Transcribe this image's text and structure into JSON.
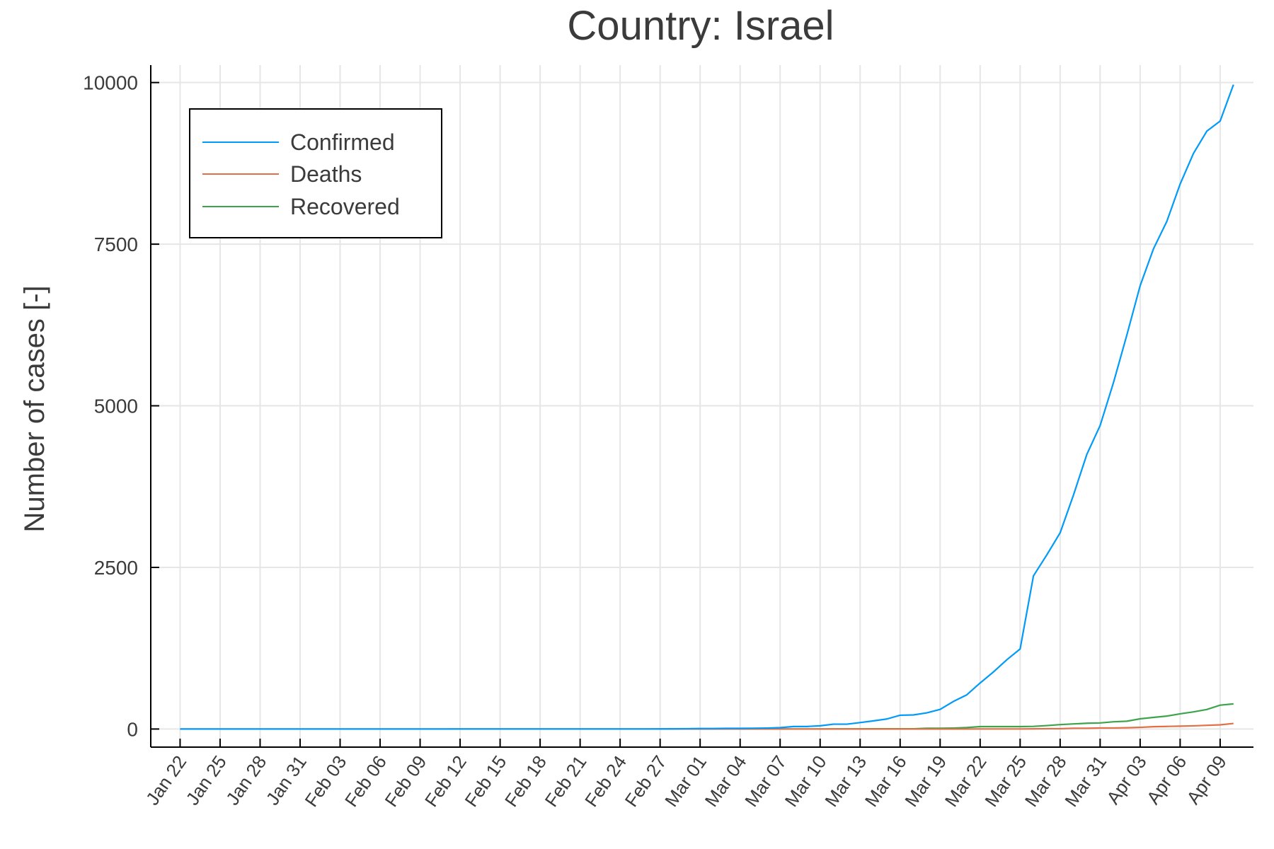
{
  "chart_data": {
    "type": "line",
    "title": "Country: Israel",
    "xlabel": "",
    "ylabel": "Number of cases [-]",
    "ylim": [
      -280,
      10270
    ],
    "yticks": [
      0,
      2500,
      5000,
      7500,
      10000
    ],
    "ytick_labels": [
      "0",
      "2500",
      "5000",
      "7500",
      "10000"
    ],
    "xticks": [
      0,
      3,
      6,
      9,
      12,
      15,
      18,
      21,
      24,
      27,
      30,
      33,
      36,
      39,
      42,
      45,
      48,
      51,
      54,
      57,
      60,
      63,
      66,
      69,
      72,
      75,
      78
    ],
    "xtick_labels": [
      "Jan 22",
      "Jan 25",
      "Jan 28",
      "Jan 31",
      "Feb 03",
      "Feb 06",
      "Feb 09",
      "Feb 12",
      "Feb 15",
      "Feb 18",
      "Feb 21",
      "Feb 24",
      "Feb 27",
      "Mar 01",
      "Mar 04",
      "Mar 07",
      "Mar 10",
      "Mar 13",
      "Mar 16",
      "Mar 19",
      "Mar 22",
      "Mar 25",
      "Mar 28",
      "Mar 31",
      "Apr 03",
      "Apr 06",
      "Apr 09"
    ],
    "xlim": [
      -2.2,
      80.5
    ],
    "grid": true,
    "legend_position": "top-left",
    "series": [
      {
        "name": "Confirmed",
        "color": "#009af9",
        "values": [
          0,
          0,
          0,
          0,
          0,
          0,
          0,
          0,
          0,
          0,
          0,
          0,
          0,
          0,
          0,
          0,
          0,
          0,
          0,
          0,
          0,
          1,
          1,
          1,
          1,
          1,
          1,
          1,
          1,
          1,
          1,
          1,
          1,
          1,
          1,
          1,
          2,
          3,
          5,
          7,
          7,
          10,
          10,
          12,
          15,
          21,
          39,
          39,
          50,
          75,
          75,
          100,
          126,
          155,
          213,
          218,
          250,
          304,
          427,
          529,
          712,
          883,
          1071,
          1238,
          2369,
          2693,
          3035,
          3619,
          4247,
          4695,
          5358,
          6092,
          6857,
          7428,
          7851,
          8430,
          8904,
          9248,
          9404,
          9968
        ]
      },
      {
        "name": "Deaths",
        "color": "#e26f46",
        "values": [
          0,
          0,
          0,
          0,
          0,
          0,
          0,
          0,
          0,
          0,
          0,
          0,
          0,
          0,
          0,
          0,
          0,
          0,
          0,
          0,
          0,
          0,
          0,
          0,
          0,
          0,
          0,
          0,
          0,
          0,
          0,
          0,
          0,
          0,
          0,
          0,
          0,
          0,
          0,
          0,
          0,
          0,
          0,
          0,
          0,
          0,
          0,
          0,
          0,
          0,
          0,
          0,
          0,
          0,
          0,
          0,
          0,
          0,
          0,
          0,
          1,
          1,
          1,
          1,
          3,
          5,
          5,
          12,
          12,
          16,
          16,
          20,
          26,
          36,
          40,
          44,
          49,
          57,
          65,
          86
        ]
      },
      {
        "name": "Recovered",
        "color": "#3da44d",
        "values": [
          0,
          0,
          0,
          0,
          0,
          0,
          0,
          0,
          0,
          0,
          0,
          0,
          0,
          0,
          0,
          0,
          0,
          0,
          0,
          0,
          0,
          0,
          0,
          0,
          0,
          0,
          0,
          0,
          0,
          0,
          0,
          0,
          0,
          0,
          0,
          0,
          0,
          0,
          0,
          0,
          0,
          1,
          1,
          1,
          1,
          1,
          1,
          1,
          1,
          2,
          2,
          2,
          4,
          4,
          4,
          4,
          11,
          11,
          15,
          22,
          37,
          37,
          37,
          37,
          41,
          53,
          68,
          79,
          89,
          94,
          112,
          121,
          158,
          180,
          200,
          235,
          265,
          302,
          369,
          389
        ]
      }
    ]
  }
}
